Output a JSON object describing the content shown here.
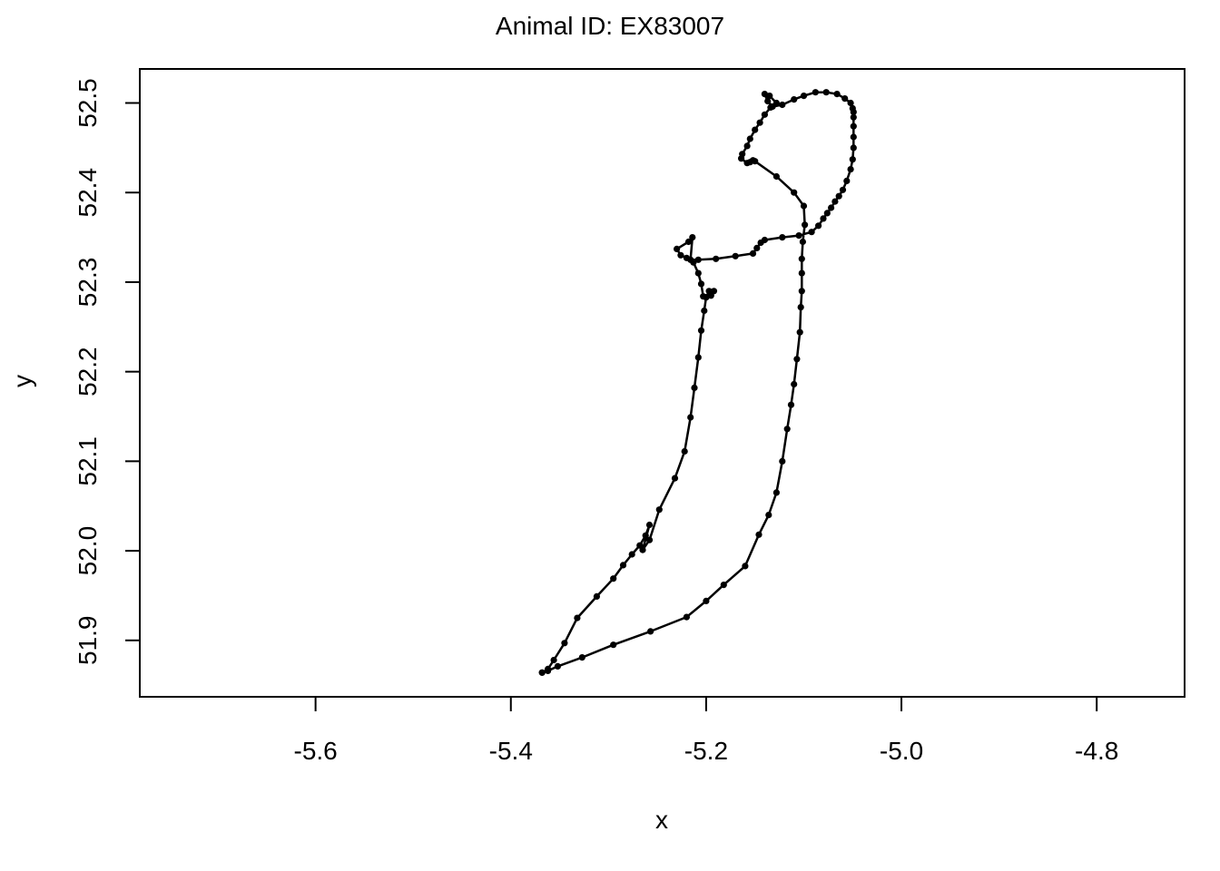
{
  "chart_data": {
    "type": "line",
    "title": "Animal ID: EX83007",
    "xlabel": "x",
    "ylabel": "y",
    "xlim": [
      -5.78,
      -4.71
    ],
    "ylim": [
      51.837,
      52.538
    ],
    "xticks": [
      -5.6,
      -5.4,
      -5.2,
      -5.0,
      -4.8
    ],
    "xtick_labels": [
      "-5.6",
      "-5.4",
      "-5.2",
      "-5.0",
      "-4.8"
    ],
    "yticks": [
      51.9,
      52.0,
      52.1,
      52.2,
      52.3,
      52.4,
      52.5
    ],
    "ytick_labels": [
      "51.9",
      "52.0",
      "52.1",
      "52.2",
      "52.3",
      "52.4",
      "52.5"
    ],
    "grid": false,
    "legend": "none",
    "markers": true,
    "line_color": "#000000",
    "series": [
      {
        "x": [
          -5.192,
          -5.195,
          -5.2,
          -5.203,
          -5.205,
          -5.208,
          -5.213,
          -5.22,
          -5.226,
          -5.23,
          -5.218,
          -5.214,
          -5.216,
          -5.208,
          -5.19,
          -5.17,
          -5.152,
          -5.148,
          -5.144,
          -5.14,
          -5.122,
          -5.105,
          -5.092,
          -5.085,
          -5.08,
          -5.076,
          -5.072,
          -5.068,
          -5.064,
          -5.06,
          -5.056,
          -5.052,
          -5.05,
          -5.049,
          -5.049,
          -5.049,
          -5.049,
          -5.049,
          -5.05,
          -5.052,
          -5.058,
          -5.066,
          -5.077,
          -5.088,
          -5.1,
          -5.11,
          -5.122,
          -5.132,
          -5.137,
          -5.14,
          -5.135,
          -5.128,
          -5.134,
          -5.14,
          -5.145,
          -5.15,
          -5.155,
          -5.158,
          -5.163,
          -5.164,
          -5.158,
          -5.155,
          -5.152,
          -5.15,
          -5.128,
          -5.11,
          -5.1,
          -5.099,
          -5.101,
          -5.102,
          -5.102,
          -5.102,
          -5.103,
          -5.104,
          -5.107,
          -5.11,
          -5.113,
          -5.117,
          -5.122,
          -5.128,
          -5.136,
          -5.146,
          -5.16,
          -5.182,
          -5.2,
          -5.22,
          -5.257,
          -5.295,
          -5.327,
          -5.352,
          -5.362,
          -5.368
        ],
        "y": [
          52.29,
          52.285,
          52.283,
          52.284,
          52.298,
          52.31,
          52.322,
          52.327,
          52.33,
          52.337,
          52.345,
          52.35,
          52.325,
          52.325,
          52.326,
          52.329,
          52.332,
          52.338,
          52.344,
          52.347,
          52.35,
          52.352,
          52.356,
          52.363,
          52.371,
          52.377,
          52.383,
          52.39,
          52.396,
          52.403,
          52.413,
          52.426,
          52.437,
          52.45,
          52.462,
          52.474,
          52.484,
          52.49,
          52.494,
          52.5,
          52.505,
          52.51,
          52.512,
          52.512,
          52.508,
          52.504,
          52.498,
          52.496,
          52.502,
          52.51,
          52.508,
          52.5,
          52.495,
          52.487,
          52.478,
          52.47,
          52.46,
          52.452,
          52.443,
          52.438,
          52.433,
          52.434,
          52.436,
          52.435,
          52.418,
          52.4,
          52.385,
          52.364,
          52.345,
          52.326,
          52.31,
          52.29,
          52.272,
          52.244,
          52.214,
          52.186,
          52.163,
          52.136,
          52.1,
          52.065,
          52.04,
          52.018,
          51.983,
          51.962,
          51.944,
          51.926,
          51.91,
          51.895,
          51.881,
          51.871,
          51.866,
          51.864
        ]
      },
      {
        "x": [
          -5.368,
          -5.362,
          -5.356,
          -5.345,
          -5.332,
          -5.312,
          -5.295,
          -5.285,
          -5.276,
          -5.268,
          -5.262,
          -5.258,
          -5.265,
          -5.258,
          -5.248,
          -5.232,
          -5.222,
          -5.216,
          -5.212,
          -5.208,
          -5.205,
          -5.202,
          -5.2,
          -5.197
        ],
        "y": [
          51.864,
          51.868,
          51.878,
          51.897,
          51.925,
          51.949,
          51.969,
          51.984,
          51.996,
          52.006,
          52.017,
          52.029,
          52.001,
          52.012,
          52.046,
          52.081,
          52.111,
          52.149,
          52.182,
          52.216,
          52.246,
          52.268,
          52.283,
          52.29
        ]
      }
    ]
  }
}
